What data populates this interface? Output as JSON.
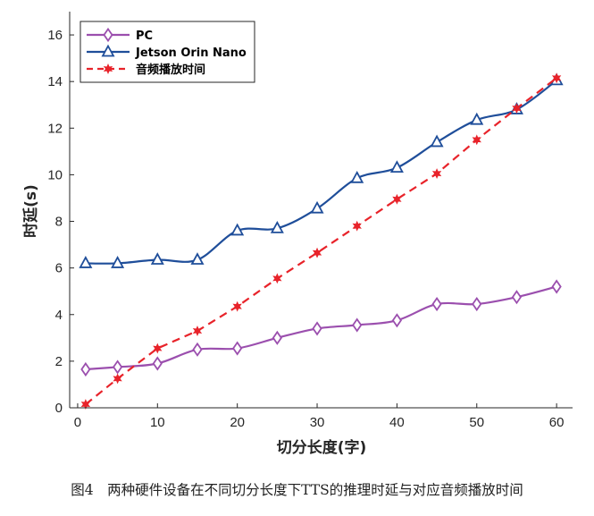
{
  "caption": "图4　两种硬件设备在不同切分长度下TTS的推理时延与对应音频播放时间",
  "chart_data": {
    "type": "line",
    "title": "",
    "xlabel": "切分长度(字)",
    "ylabel": "时延(s)",
    "xlim": [
      -1,
      62
    ],
    "ylim": [
      0,
      17
    ],
    "xticks": [
      0,
      10,
      20,
      30,
      40,
      50,
      60
    ],
    "yticks": [
      0,
      2,
      4,
      6,
      8,
      10,
      12,
      14,
      16
    ],
    "x": [
      1,
      5,
      10,
      15,
      20,
      25,
      30,
      35,
      40,
      45,
      50,
      55,
      60
    ],
    "legend_position": "top-left",
    "series": [
      {
        "name": "PC",
        "color": "#9B4FAE",
        "marker": "diamond",
        "line": "solid",
        "values": [
          1.65,
          1.75,
          1.9,
          2.5,
          2.55,
          3.0,
          3.4,
          3.55,
          3.75,
          4.45,
          4.45,
          4.75,
          5.2
        ]
      },
      {
        "name": "Jetson Orin Nano",
        "color": "#1F4E9A",
        "marker": "triangle",
        "line": "solid",
        "values": [
          6.2,
          6.2,
          6.35,
          6.35,
          7.6,
          7.7,
          8.55,
          9.85,
          10.3,
          11.4,
          12.35,
          12.8,
          14.05
        ]
      },
      {
        "name": "音频播放时间",
        "color": "#E8232A",
        "marker": "star",
        "line": "dashed",
        "values": [
          0.15,
          1.25,
          2.55,
          3.3,
          4.35,
          5.55,
          6.65,
          7.8,
          8.95,
          10.05,
          11.5,
          12.85,
          14.15
        ]
      }
    ]
  }
}
